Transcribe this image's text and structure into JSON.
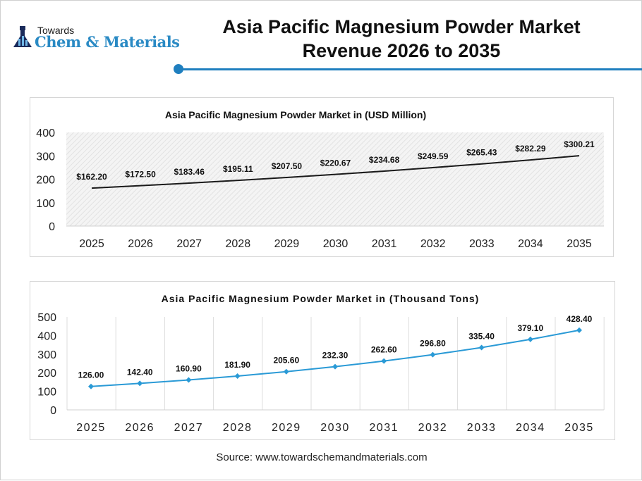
{
  "header": {
    "logo_top": "Towards",
    "logo_main": "Chem & Materials",
    "title_line1": "Asia Pacific Magnesium Powder Market",
    "title_line2": "Revenue 2026 to 2035",
    "accent_color": "#1f7fbf"
  },
  "chart_data": [
    {
      "type": "line",
      "title": "Asia Pacific Magnesium Powder Market in (USD Million)",
      "categories": [
        "2025",
        "2026",
        "2027",
        "2028",
        "2029",
        "2030",
        "2031",
        "2032",
        "2033",
        "2034",
        "2035"
      ],
      "values": [
        162.2,
        172.5,
        183.46,
        195.11,
        207.5,
        220.67,
        234.68,
        249.59,
        265.43,
        282.29,
        300.21
      ],
      "data_labels": [
        "$162.20",
        "$172.50",
        "$183.46",
        "$195.11",
        "$207.50",
        "$220.67",
        "$234.68",
        "$249.59",
        "$265.43",
        "$282.29",
        "$300.21"
      ],
      "yticks": [
        "0",
        "100",
        "200",
        "300",
        "400"
      ],
      "ylim": [
        0,
        400
      ],
      "line_color": "#1a1a1a",
      "background": "hatched",
      "grid": false
    },
    {
      "type": "line",
      "title": "Asia Pacific Magnesium Powder Market in (Thousand Tons)",
      "categories": [
        "2025",
        "2026",
        "2027",
        "2028",
        "2029",
        "2030",
        "2031",
        "2032",
        "2033",
        "2034",
        "2035"
      ],
      "values": [
        126.0,
        142.4,
        160.9,
        181.9,
        205.6,
        232.3,
        262.6,
        296.8,
        335.4,
        379.1,
        428.4
      ],
      "data_labels": [
        "126.00",
        "142.40",
        "160.90",
        "181.90",
        "205.60",
        "232.30",
        "262.60",
        "296.80",
        "335.40",
        "379.10",
        "428.40"
      ],
      "yticks": [
        "0",
        "100",
        "200",
        "300",
        "400",
        "500"
      ],
      "ylim": [
        0,
        500
      ],
      "line_color": "#2a9ad6",
      "marker": "diamond",
      "grid": "vertical"
    }
  ],
  "footer": {
    "source": "Source: www.towardschemandmaterials.com"
  }
}
